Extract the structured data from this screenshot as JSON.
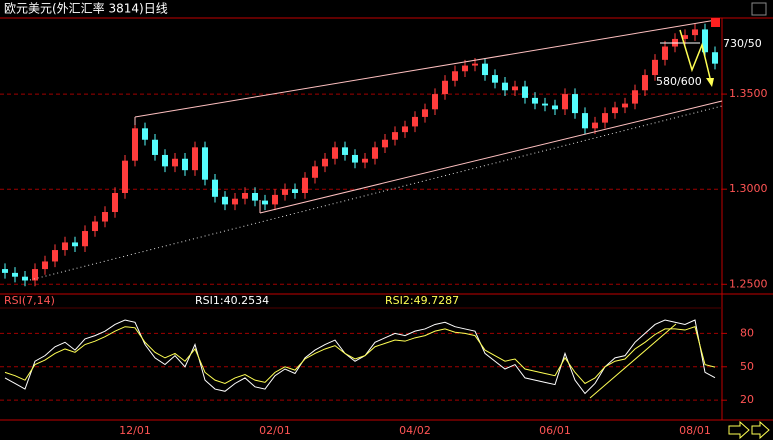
{
  "chart_data": [
    {
      "type": "candlestick",
      "title": "欧元美元(外汇汇率 3814)日线",
      "categories": [
        null,
        null,
        null,
        null,
        null,
        null,
        null,
        null,
        null,
        null,
        null,
        null,
        null,
        "12/01",
        null,
        null,
        null,
        null,
        null,
        null,
        null,
        null,
        null,
        null,
        null,
        null,
        null,
        "02/01",
        null,
        null,
        null,
        null,
        null,
        null,
        null,
        null,
        null,
        null,
        null,
        null,
        null,
        "04/02",
        null,
        null,
        null,
        null,
        null,
        null,
        null,
        null,
        null,
        null,
        null,
        null,
        null,
        "06/01",
        null,
        null,
        null,
        null,
        null,
        null,
        null,
        null,
        null,
        null,
        null,
        null,
        null,
        "08/01",
        null,
        null
      ],
      "open": [
        1.258,
        1.256,
        1.254,
        1.252,
        1.258,
        1.262,
        1.268,
        1.272,
        1.27,
        1.278,
        1.283,
        1.288,
        1.298,
        1.315,
        1.332,
        1.326,
        1.318,
        1.312,
        1.316,
        1.31,
        1.322,
        1.305,
        1.296,
        1.292,
        1.295,
        1.298,
        1.294,
        1.292,
        1.297,
        1.3,
        1.298,
        1.306,
        1.312,
        1.316,
        1.322,
        1.318,
        1.314,
        1.316,
        1.322,
        1.326,
        1.33,
        1.333,
        1.338,
        1.342,
        1.35,
        1.357,
        1.362,
        1.365,
        1.366,
        1.36,
        1.356,
        1.352,
        1.354,
        1.348,
        1.345,
        1.344,
        1.342,
        1.35,
        1.34,
        1.332,
        1.335,
        1.34,
        1.343,
        1.345,
        1.352,
        1.36,
        1.368,
        1.375,
        1.379,
        1.381,
        1.384,
        1.372
      ],
      "high": [
        1.261,
        1.259,
        1.257,
        1.261,
        1.265,
        1.271,
        1.275,
        1.275,
        1.281,
        1.286,
        1.291,
        1.301,
        1.318,
        1.335,
        1.335,
        1.329,
        1.321,
        1.319,
        1.319,
        1.325,
        1.325,
        1.308,
        1.299,
        1.298,
        1.301,
        1.301,
        1.297,
        1.3,
        1.303,
        1.303,
        1.309,
        1.315,
        1.319,
        1.325,
        1.325,
        1.321,
        1.319,
        1.325,
        1.329,
        1.333,
        1.336,
        1.341,
        1.345,
        1.353,
        1.36,
        1.365,
        1.368,
        1.369,
        1.369,
        1.363,
        1.359,
        1.357,
        1.357,
        1.351,
        1.348,
        1.347,
        1.353,
        1.353,
        1.343,
        1.338,
        1.343,
        1.346,
        1.348,
        1.355,
        1.363,
        1.371,
        1.378,
        1.382,
        1.384,
        1.387,
        1.387,
        1.375
      ],
      "low": [
        1.253,
        1.251,
        1.249,
        1.249,
        1.255,
        1.259,
        1.265,
        1.267,
        1.267,
        1.275,
        1.28,
        1.285,
        1.295,
        1.312,
        1.323,
        1.315,
        1.309,
        1.309,
        1.307,
        1.307,
        1.302,
        1.293,
        1.289,
        1.289,
        1.292,
        1.291,
        1.289,
        1.289,
        1.294,
        1.295,
        1.295,
        1.303,
        1.309,
        1.313,
        1.315,
        1.311,
        1.311,
        1.313,
        1.319,
        1.323,
        1.327,
        1.33,
        1.335,
        1.339,
        1.347,
        1.354,
        1.359,
        1.362,
        1.357,
        1.353,
        1.349,
        1.349,
        1.345,
        1.342,
        1.341,
        1.339,
        1.339,
        1.337,
        1.329,
        1.329,
        1.332,
        1.337,
        1.34,
        1.342,
        1.349,
        1.357,
        1.365,
        1.372,
        1.376,
        1.378,
        1.369,
        1.363
      ],
      "close": [
        1.256,
        1.254,
        1.252,
        1.258,
        1.262,
        1.268,
        1.272,
        1.27,
        1.278,
        1.283,
        1.288,
        1.298,
        1.315,
        1.332,
        1.326,
        1.318,
        1.312,
        1.316,
        1.31,
        1.322,
        1.305,
        1.296,
        1.292,
        1.295,
        1.298,
        1.294,
        1.292,
        1.297,
        1.3,
        1.298,
        1.306,
        1.312,
        1.316,
        1.322,
        1.318,
        1.314,
        1.316,
        1.322,
        1.326,
        1.33,
        1.333,
        1.338,
        1.342,
        1.35,
        1.357,
        1.362,
        1.365,
        1.366,
        1.36,
        1.356,
        1.352,
        1.354,
        1.348,
        1.345,
        1.344,
        1.342,
        1.35,
        1.34,
        1.332,
        1.335,
        1.34,
        1.343,
        1.345,
        1.352,
        1.36,
        1.368,
        1.375,
        1.379,
        1.381,
        1.384,
        1.372,
        1.366
      ],
      "up_color": "#ff3c3c",
      "down_color": "#54fcfc",
      "ylim": [
        1.247,
        1.39
      ],
      "yticks": [
        {
          "value": 1.35,
          "label": "1.3500"
        },
        {
          "value": 1.3,
          "label": "1.3000"
        },
        {
          "value": 1.25,
          "label": "1.2500"
        }
      ],
      "grid": true,
      "annotations": [
        "730/50",
        "580/600"
      ]
    },
    {
      "type": "line",
      "title": "RSI(7,14)",
      "series": [
        {
          "label": "RSI1:40.2534",
          "color": "#ffffff",
          "values": [
            40,
            35,
            30,
            55,
            60,
            68,
            72,
            65,
            75,
            78,
            82,
            88,
            92,
            90,
            70,
            58,
            52,
            60,
            50,
            70,
            38,
            30,
            28,
            35,
            40,
            32,
            30,
            42,
            48,
            44,
            58,
            65,
            70,
            74,
            62,
            55,
            60,
            72,
            76,
            80,
            78,
            82,
            84,
            88,
            90,
            86,
            84,
            82,
            62,
            55,
            48,
            52,
            40,
            38,
            36,
            34,
            62,
            38,
            26,
            35,
            50,
            58,
            60,
            72,
            80,
            88,
            92,
            90,
            88,
            92,
            45,
            40.2534
          ]
        },
        {
          "label": "RSI2:49.7287",
          "color": "#ffff54",
          "values": [
            45,
            42,
            38,
            52,
            56,
            62,
            66,
            63,
            70,
            73,
            77,
            82,
            86,
            85,
            72,
            63,
            58,
            62,
            55,
            66,
            45,
            38,
            35,
            40,
            43,
            38,
            36,
            45,
            50,
            47,
            57,
            62,
            66,
            69,
            62,
            57,
            60,
            68,
            71,
            74,
            73,
            76,
            78,
            82,
            84,
            81,
            80,
            78,
            65,
            60,
            55,
            57,
            48,
            46,
            44,
            42,
            58,
            45,
            35,
            40,
            50,
            55,
            57,
            66,
            72,
            79,
            84,
            84,
            83,
            86,
            52,
            49.7287
          ]
        }
      ],
      "ylim": [
        4,
        101
      ],
      "yticks": [
        80,
        50,
        20
      ],
      "grid": true
    }
  ]
}
